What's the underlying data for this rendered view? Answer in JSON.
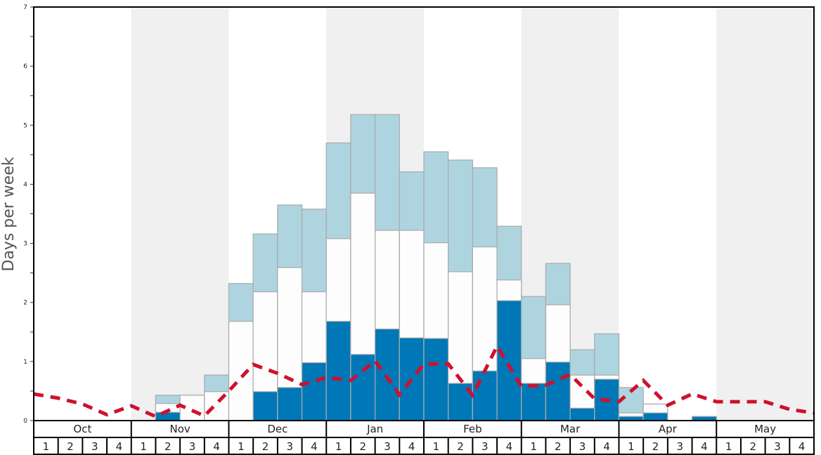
{
  "chart_data": {
    "type": "bar",
    "subtype": "stacked-bar-with-line",
    "title": "",
    "xlabel": "",
    "ylabel": "Days per week",
    "ylim": [
      0,
      7
    ],
    "yticks": [
      0,
      1,
      2,
      3,
      4,
      5,
      6,
      7
    ],
    "months": [
      "Oct",
      "Nov",
      "Dec",
      "Jan",
      "Feb",
      "Mar",
      "Apr",
      "May"
    ],
    "weeks_per_month": [
      "1",
      "2",
      "3",
      "4"
    ],
    "shaded_months": [
      "Nov",
      "Jan",
      "Mar",
      "May"
    ],
    "categories": [
      "Oct 1",
      "Oct 2",
      "Oct 3",
      "Oct 4",
      "Nov 1",
      "Nov 2",
      "Nov 3",
      "Nov 4",
      "Dec 1",
      "Dec 2",
      "Dec 3",
      "Dec 4",
      "Jan 1",
      "Jan 2",
      "Jan 3",
      "Jan 4",
      "Feb 1",
      "Feb 2",
      "Feb 3",
      "Feb 4",
      "Mar 1",
      "Mar 2",
      "Mar 3",
      "Mar 4",
      "Apr 1",
      "Apr 2",
      "Apr 3",
      "Apr 4",
      "May 1",
      "May 2",
      "May 3",
      "May 4"
    ],
    "series": [
      {
        "name": "Bottom segment (dark blue)",
        "color": "#0077b6",
        "cumulative_top": [
          0,
          0,
          0,
          0,
          0,
          0.14,
          0,
          0,
          0,
          0.49,
          0.56,
          0.98,
          1.68,
          1.12,
          1.55,
          1.4,
          1.39,
          0.63,
          0.84,
          2.03,
          0.63,
          0.99,
          0.21,
          0.7,
          0.07,
          0.13,
          0,
          0.07,
          0,
          0,
          0,
          0
        ]
      },
      {
        "name": "Middle segment (white)",
        "color": "#fdfdfd",
        "cumulative_top": [
          0,
          0,
          0,
          0,
          0,
          0.29,
          0.43,
          0.49,
          1.68,
          2.18,
          2.59,
          2.18,
          3.08,
          3.85,
          3.22,
          3.22,
          3.01,
          2.52,
          2.94,
          2.38,
          1.05,
          1.96,
          0.77,
          0.77,
          0.13,
          0.28,
          0,
          0.07,
          0,
          0,
          0,
          0
        ]
      },
      {
        "name": "Top segment (light blue)",
        "color": "#aed4e0",
        "cumulative_top": [
          0,
          0,
          0,
          0,
          0,
          0.43,
          0.43,
          0.77,
          2.32,
          3.16,
          3.65,
          3.58,
          4.7,
          5.18,
          5.18,
          4.21,
          4.55,
          4.41,
          4.28,
          3.29,
          2.1,
          2.66,
          1.2,
          1.47,
          0.56,
          0.28,
          0,
          0.07,
          0,
          0,
          0,
          0
        ]
      }
    ],
    "line": {
      "name": "Red dashed line",
      "color": "#d0102c",
      "style": "dashed",
      "x_positions": "week boundaries from start of Oct to end of May (33 points)",
      "values": [
        0.45,
        0.38,
        0.28,
        0.1,
        0.25,
        0.07,
        0.26,
        0.08,
        0.5,
        0.95,
        0.8,
        0.61,
        0.73,
        0.68,
        1.01,
        0.44,
        0.96,
        0.96,
        0.43,
        1.26,
        0.58,
        0.6,
        0.78,
        0.37,
        0.32,
        0.68,
        0.26,
        0.45,
        0.32,
        0.32,
        0.32,
        0.19,
        0.13
      ]
    },
    "grid": false,
    "legend": "none"
  }
}
